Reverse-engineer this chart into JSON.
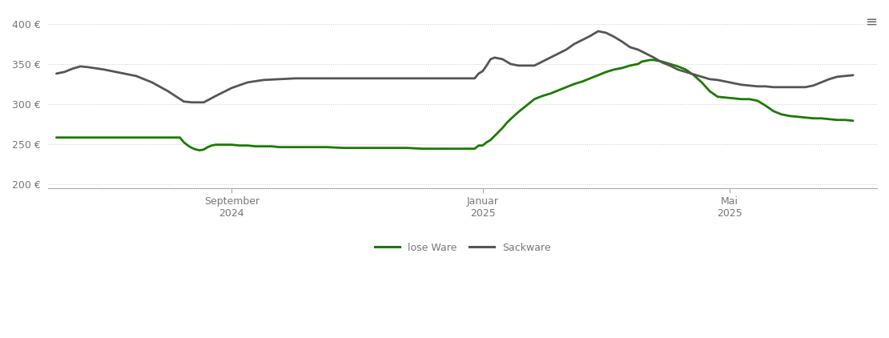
{
  "background_color": "#ffffff",
  "grid_color": "#cccccc",
  "grid_linestyle": "dotted",
  "ylim": [
    195,
    415
  ],
  "yticks": [
    200,
    250,
    300,
    350,
    400
  ],
  "x_tick_labels": [
    [
      "September\n2024",
      0.22
    ],
    [
      "Januar\n2025",
      0.535
    ],
    [
      "Mai\n2025",
      0.845
    ]
  ],
  "line_lose_ware": {
    "color": "#1a7a00",
    "label": "lose Ware",
    "linewidth": 2.0,
    "x": [
      0.0,
      0.04,
      0.08,
      0.12,
      0.155,
      0.16,
      0.165,
      0.17,
      0.175,
      0.18,
      0.185,
      0.19,
      0.195,
      0.2,
      0.21,
      0.215,
      0.22,
      0.23,
      0.24,
      0.25,
      0.26,
      0.27,
      0.28,
      0.3,
      0.32,
      0.34,
      0.36,
      0.38,
      0.4,
      0.42,
      0.44,
      0.46,
      0.48,
      0.5,
      0.52,
      0.525,
      0.53,
      0.535,
      0.54,
      0.545,
      0.55,
      0.555,
      0.56,
      0.565,
      0.57,
      0.58,
      0.59,
      0.6,
      0.61,
      0.62,
      0.63,
      0.64,
      0.65,
      0.66,
      0.67,
      0.68,
      0.69,
      0.7,
      0.71,
      0.72,
      0.73,
      0.735,
      0.74,
      0.745,
      0.75,
      0.76,
      0.77,
      0.78,
      0.79,
      0.8,
      0.81,
      0.82,
      0.83,
      0.84,
      0.85,
      0.86,
      0.87,
      0.875,
      0.88,
      0.89,
      0.9,
      0.91,
      0.92,
      0.93,
      0.94,
      0.95,
      0.96,
      0.97,
      0.98,
      0.99,
      1.0
    ],
    "y": [
      258,
      258,
      258,
      258,
      258,
      252,
      248,
      245,
      243,
      242,
      243,
      246,
      248,
      249,
      249,
      249,
      249,
      248,
      248,
      247,
      247,
      247,
      246,
      246,
      246,
      246,
      245,
      245,
      245,
      245,
      245,
      244,
      244,
      244,
      244,
      244,
      248,
      248,
      252,
      255,
      260,
      265,
      270,
      276,
      281,
      290,
      298,
      306,
      310,
      313,
      317,
      321,
      325,
      328,
      332,
      336,
      340,
      343,
      345,
      348,
      350,
      353,
      354,
      355,
      355,
      353,
      350,
      347,
      343,
      336,
      327,
      316,
      309,
      308,
      307,
      306,
      306,
      305,
      304,
      298,
      291,
      287,
      285,
      284,
      283,
      282,
      282,
      281,
      280,
      280,
      279
    ]
  },
  "line_sackware": {
    "color": "#555555",
    "label": "Sackware",
    "linewidth": 2.0,
    "x": [
      0.0,
      0.01,
      0.02,
      0.03,
      0.04,
      0.06,
      0.08,
      0.1,
      0.12,
      0.14,
      0.16,
      0.17,
      0.175,
      0.18,
      0.185,
      0.2,
      0.22,
      0.24,
      0.26,
      0.28,
      0.3,
      0.32,
      0.34,
      0.36,
      0.38,
      0.4,
      0.42,
      0.44,
      0.46,
      0.48,
      0.5,
      0.52,
      0.525,
      0.53,
      0.535,
      0.54,
      0.545,
      0.55,
      0.56,
      0.57,
      0.58,
      0.59,
      0.6,
      0.62,
      0.64,
      0.65,
      0.66,
      0.67,
      0.68,
      0.69,
      0.7,
      0.71,
      0.72,
      0.73,
      0.74,
      0.75,
      0.76,
      0.77,
      0.78,
      0.79,
      0.8,
      0.81,
      0.82,
      0.83,
      0.84,
      0.85,
      0.86,
      0.87,
      0.88,
      0.89,
      0.9,
      0.91,
      0.92,
      0.93,
      0.94,
      0.95,
      0.96,
      0.97,
      0.98,
      0.99,
      1.0
    ],
    "y": [
      338,
      340,
      344,
      347,
      346,
      343,
      339,
      335,
      327,
      316,
      303,
      302,
      302,
      302,
      302,
      310,
      320,
      327,
      330,
      331,
      332,
      332,
      332,
      332,
      332,
      332,
      332,
      332,
      332,
      332,
      332,
      332,
      332,
      338,
      341,
      348,
      356,
      358,
      356,
      350,
      348,
      348,
      348,
      358,
      368,
      375,
      380,
      385,
      391,
      389,
      384,
      378,
      371,
      368,
      363,
      358,
      352,
      348,
      343,
      340,
      337,
      334,
      331,
      330,
      328,
      326,
      324,
      323,
      322,
      322,
      321,
      321,
      321,
      321,
      321,
      323,
      327,
      331,
      334,
      335,
      336
    ]
  },
  "tick_color": "#777777",
  "spine_color": "#aaaaaa",
  "menu_icon_color": "#666666"
}
